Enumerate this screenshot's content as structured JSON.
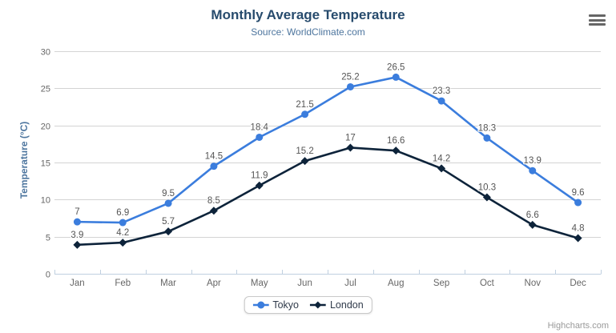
{
  "header": {
    "title": "Monthly Average Temperature",
    "subtitle": "Source: WorldClimate.com",
    "menu_icon": "hamburger-icon"
  },
  "credits": "Highcharts.com",
  "chart_data": {
    "type": "line",
    "categories": [
      "Jan",
      "Feb",
      "Mar",
      "Apr",
      "May",
      "Jun",
      "Jul",
      "Aug",
      "Sep",
      "Oct",
      "Nov",
      "Dec"
    ],
    "series": [
      {
        "name": "Tokyo",
        "color": "#3b7ddd",
        "marker": "circle",
        "values": [
          7,
          6.9,
          9.5,
          14.5,
          18.4,
          21.5,
          25.2,
          26.5,
          23.3,
          18.3,
          13.9,
          9.6
        ]
      },
      {
        "name": "London",
        "color": "#0d233a",
        "marker": "diamond",
        "values": [
          3.9,
          4.2,
          5.7,
          8.5,
          11.9,
          15.2,
          17,
          16.6,
          14.2,
          10.3,
          6.6,
          4.8
        ]
      }
    ],
    "title": "Monthly Average Temperature",
    "subtitle": "Source: WorldClimate.com",
    "xlabel": "",
    "ylabel": "Temperature (°C)",
    "ylim": [
      0,
      30
    ],
    "ytick_interval": 5,
    "yticks": [
      0,
      5,
      10,
      15,
      20,
      25,
      30
    ],
    "grid": true,
    "data_labels": true,
    "legend_position": "bottom",
    "axis_line_color": "#c0d0e0",
    "grid_color": "#d4d4d4",
    "label_color": "#666666",
    "data_label_color": "#555555"
  }
}
